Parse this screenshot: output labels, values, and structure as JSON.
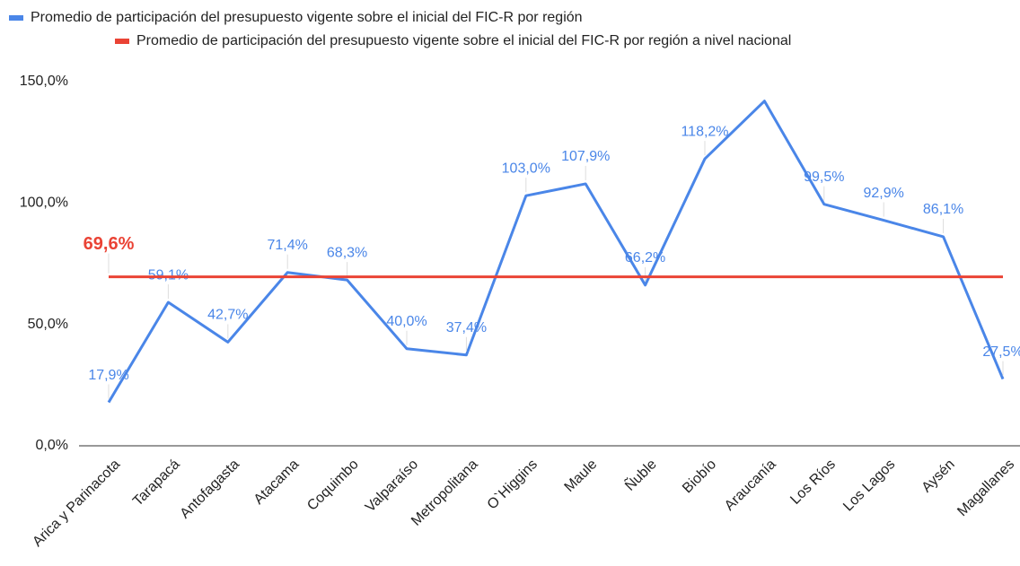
{
  "chart_data": {
    "type": "line",
    "categories": [
      "Arica y Parinacota",
      "Tarapacá",
      "Antofagasta",
      "Atacama",
      "Coquimbo",
      "Valparaíso",
      "Metropolitana",
      "O`Higgins",
      "Maule",
      "Ñuble",
      "Biobío",
      "Araucanía",
      "Los Ríos",
      "Los Lagos",
      "Aysén",
      "Magallanes"
    ],
    "series": [
      {
        "name": "Promedio de participación del presupuesto vigente sobre el inicial del FIC-R por región",
        "color": "#4a86e8",
        "values": [
          17.9,
          59.1,
          42.7,
          71.4,
          68.3,
          40.0,
          37.4,
          103.0,
          107.9,
          66.2,
          118.2,
          142,
          99.5,
          92.9,
          86.1,
          27.5
        ],
        "value_labels": [
          "17,9%",
          "59,1%",
          "42,7%",
          "71,4%",
          "68,3%",
          "40,0%",
          "37,4%",
          "103,0%",
          "107,9%",
          "66,2%",
          "118,2%",
          null,
          "99,5%",
          "92,9%",
          "86,1%",
          "27,5%"
        ]
      },
      {
        "name": "Promedio de participación del presupuesto vigente sobre el inicial del FIC-R por región a nivel nacional",
        "color": "#ea4335",
        "values": [
          69.6,
          69.6,
          69.6,
          69.6,
          69.6,
          69.6,
          69.6,
          69.6,
          69.6,
          69.6,
          69.6,
          69.6,
          69.6,
          69.6,
          69.6,
          69.6
        ],
        "value_labels": [
          "69,6%",
          null,
          null,
          null,
          null,
          null,
          null,
          null,
          null,
          null,
          null,
          null,
          null,
          null,
          null,
          null
        ]
      }
    ],
    "ylim": [
      0,
      150
    ],
    "yticks": [
      {
        "value": 0,
        "label": "0,0%"
      },
      {
        "value": 50,
        "label": "50,0%"
      },
      {
        "value": 100,
        "label": "100,0%"
      },
      {
        "value": 150,
        "label": "150,0%"
      }
    ],
    "grid": false
  }
}
